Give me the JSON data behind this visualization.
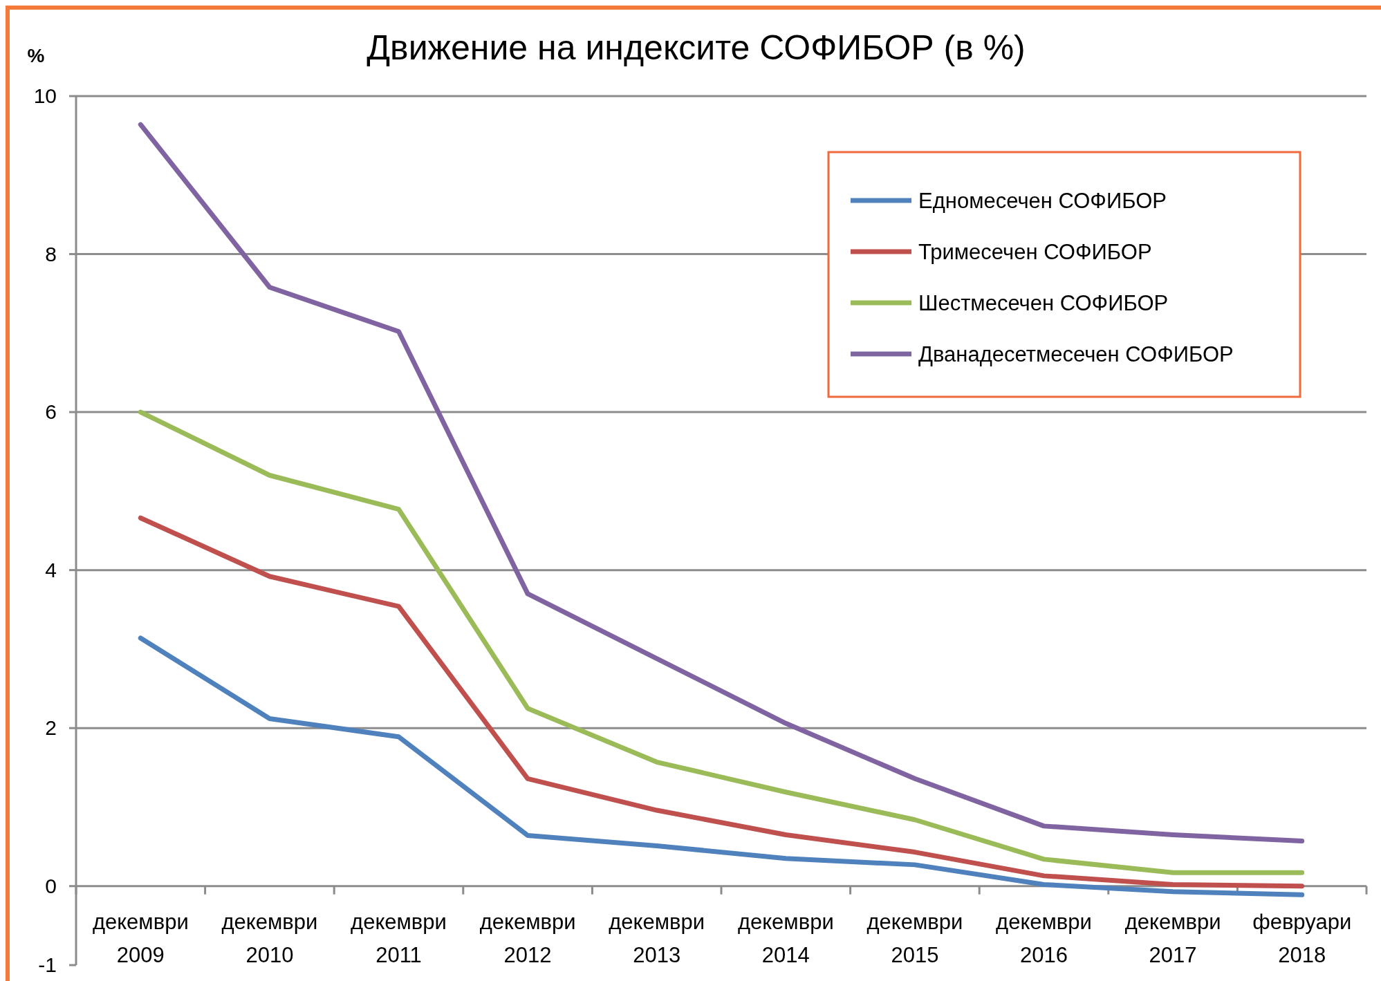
{
  "chart_data": {
    "type": "line",
    "title": "Движение на индексите СОФИБОР (в %)",
    "ylabel": "%",
    "categories": [
      "декември\n2009",
      "декември\n2010",
      "декември\n2011",
      "декември\n2012",
      "декември\n2013",
      "декември\n2014",
      "декември\n2015",
      "декември\n2016",
      "декември\n2017",
      "февруари\n2018"
    ],
    "series": [
      {
        "name": "Едномесечен СОФИБОР",
        "color": "#4f81bd",
        "values": [
          3.14,
          2.12,
          1.89,
          0.64,
          0.51,
          0.35,
          0.27,
          0.02,
          -0.07,
          -0.11
        ]
      },
      {
        "name": "Тримесечен СОФИБОР",
        "color": "#c0504d",
        "values": [
          4.66,
          3.92,
          3.54,
          1.36,
          0.96,
          0.65,
          0.43,
          0.13,
          0.02,
          0.0
        ]
      },
      {
        "name": "Шестмесечен СОФИБОР",
        "color": "#9bbb59",
        "values": [
          6.0,
          5.2,
          4.77,
          2.25,
          1.57,
          1.19,
          0.84,
          0.34,
          0.17,
          0.17
        ]
      },
      {
        "name": "Дванадесетмесечен СОФИБОР",
        "color": "#8064a2",
        "values": [
          9.64,
          7.58,
          7.02,
          3.7,
          2.88,
          2.06,
          1.36,
          0.76,
          0.65,
          0.57
        ]
      }
    ],
    "ylim": [
      -1,
      10
    ],
    "yticks": [
      -1,
      0,
      2,
      4,
      6,
      8,
      10
    ],
    "grid": "y",
    "legend": "top right",
    "marker": "none",
    "line_style": "solid"
  }
}
